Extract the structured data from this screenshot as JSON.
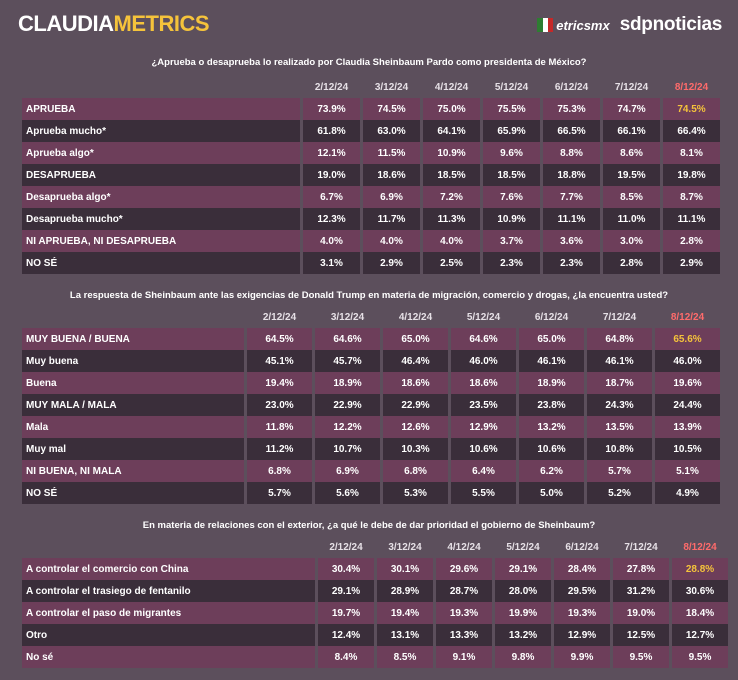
{
  "brand": {
    "part1": "CLAUDIA",
    "part2": "METRICS",
    "partner1": "etricsmx",
    "partner2": "sdpnoticias"
  },
  "colors": {
    "accent_yellow": "#f5c33b",
    "highlight_red": "#ff6b6b",
    "row_dark": "#3a2e3a",
    "row_light": "#6d3e5a",
    "background": "#5c4f5c"
  },
  "chart_data": [
    {
      "type": "table",
      "title": "¿Aprueba o desaprueba lo realizado por Claudia Sheinbaum Pardo como presidenta de México?",
      "columns": [
        "2/12/24",
        "3/12/24",
        "4/12/24",
        "5/12/24",
        "6/12/24",
        "7/12/24",
        "8/12/24"
      ],
      "rows": [
        {
          "label": "APRUEBA",
          "values": [
            "73.9%",
            "74.5%",
            "75.0%",
            "75.5%",
            "75.3%",
            "74.7%",
            "74.5%"
          ],
          "shade": "light",
          "accent": true
        },
        {
          "label": "Aprueba mucho*",
          "values": [
            "61.8%",
            "63.0%",
            "64.1%",
            "65.9%",
            "66.5%",
            "66.1%",
            "66.4%"
          ],
          "shade": "dark"
        },
        {
          "label": "Aprueba algo*",
          "values": [
            "12.1%",
            "11.5%",
            "10.9%",
            "9.6%",
            "8.8%",
            "8.6%",
            "8.1%"
          ],
          "shade": "light"
        },
        {
          "label": "DESAPRUEBA",
          "values": [
            "19.0%",
            "18.6%",
            "18.5%",
            "18.5%",
            "18.8%",
            "19.5%",
            "19.8%"
          ],
          "shade": "dark"
        },
        {
          "label": "Desaprueba algo*",
          "values": [
            "6.7%",
            "6.9%",
            "7.2%",
            "7.6%",
            "7.7%",
            "8.5%",
            "8.7%"
          ],
          "shade": "light"
        },
        {
          "label": "Desaprueba mucho*",
          "values": [
            "12.3%",
            "11.7%",
            "11.3%",
            "10.9%",
            "11.1%",
            "11.0%",
            "11.1%"
          ],
          "shade": "dark"
        },
        {
          "label": "NI APRUEBA, NI DESAPRUEBA",
          "values": [
            "4.0%",
            "4.0%",
            "4.0%",
            "3.7%",
            "3.6%",
            "3.0%",
            "2.8%"
          ],
          "shade": "light"
        },
        {
          "label": "NO SÉ",
          "values": [
            "3.1%",
            "2.9%",
            "2.5%",
            "2.3%",
            "2.3%",
            "2.8%",
            "2.9%"
          ],
          "shade": "dark"
        }
      ]
    },
    {
      "type": "table",
      "title": "La respuesta de Sheinbaum ante las exigencias de Donald Trump en materia de migración, comercio y drogas, ¿la encuentra usted?",
      "columns": [
        "2/12/24",
        "3/12/24",
        "4/12/24",
        "5/12/24",
        "6/12/24",
        "7/12/24",
        "8/12/24"
      ],
      "rows": [
        {
          "label": "MUY BUENA / BUENA",
          "values": [
            "64.5%",
            "64.6%",
            "65.0%",
            "64.6%",
            "65.0%",
            "64.8%",
            "65.6%"
          ],
          "shade": "light",
          "accent": true
        },
        {
          "label": "Muy buena",
          "values": [
            "45.1%",
            "45.7%",
            "46.4%",
            "46.0%",
            "46.1%",
            "46.1%",
            "46.0%"
          ],
          "shade": "dark"
        },
        {
          "label": "Buena",
          "values": [
            "19.4%",
            "18.9%",
            "18.6%",
            "18.6%",
            "18.9%",
            "18.7%",
            "19.6%"
          ],
          "shade": "light"
        },
        {
          "label": "MUY MALA / MALA",
          "values": [
            "23.0%",
            "22.9%",
            "22.9%",
            "23.5%",
            "23.8%",
            "24.3%",
            "24.4%"
          ],
          "shade": "dark"
        },
        {
          "label": "Mala",
          "values": [
            "11.8%",
            "12.2%",
            "12.6%",
            "12.9%",
            "13.2%",
            "13.5%",
            "13.9%"
          ],
          "shade": "light"
        },
        {
          "label": "Muy mal",
          "values": [
            "11.2%",
            "10.7%",
            "10.3%",
            "10.6%",
            "10.6%",
            "10.8%",
            "10.5%"
          ],
          "shade": "dark"
        },
        {
          "label": "NI BUENA, NI MALA",
          "values": [
            "6.8%",
            "6.9%",
            "6.8%",
            "6.4%",
            "6.2%",
            "5.7%",
            "5.1%"
          ],
          "shade": "light"
        },
        {
          "label": "NO SÉ",
          "values": [
            "5.7%",
            "5.6%",
            "5.3%",
            "5.5%",
            "5.0%",
            "5.2%",
            "4.9%"
          ],
          "shade": "dark"
        }
      ]
    },
    {
      "type": "table",
      "title": "En materia de relaciones con el exterior, ¿a qué le debe de dar prioridad el gobierno de Sheinbaum?",
      "columns": [
        "2/12/24",
        "3/12/24",
        "4/12/24",
        "5/12/24",
        "6/12/24",
        "7/12/24",
        "8/12/24"
      ],
      "rows": [
        {
          "label": "A controlar el comercio con China",
          "values": [
            "30.4%",
            "30.1%",
            "29.6%",
            "29.1%",
            "28.4%",
            "27.8%",
            "28.8%"
          ],
          "shade": "light",
          "accent": true
        },
        {
          "label": "A controlar el trasiego de fentanilo",
          "values": [
            "29.1%",
            "28.9%",
            "28.7%",
            "28.0%",
            "29.5%",
            "31.2%",
            "30.6%"
          ],
          "shade": "dark"
        },
        {
          "label": "A controlar el paso de migrantes",
          "values": [
            "19.7%",
            "19.4%",
            "19.3%",
            "19.9%",
            "19.3%",
            "19.0%",
            "18.4%"
          ],
          "shade": "light"
        },
        {
          "label": "Otro",
          "values": [
            "12.4%",
            "13.1%",
            "13.3%",
            "13.2%",
            "12.9%",
            "12.5%",
            "12.7%"
          ],
          "shade": "dark"
        },
        {
          "label": "No sé",
          "values": [
            "8.4%",
            "8.5%",
            "9.1%",
            "9.8%",
            "9.9%",
            "9.5%",
            "9.5%"
          ],
          "shade": "light"
        }
      ]
    }
  ]
}
